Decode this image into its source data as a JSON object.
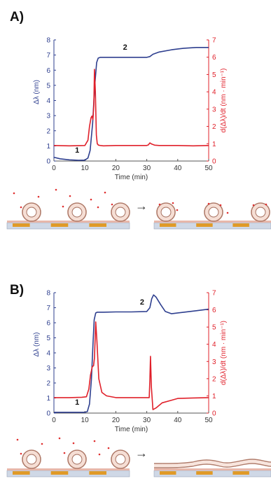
{
  "colors": {
    "left_axis": "#2e3f8f",
    "right_axis": "#e0202a",
    "axis_gray": "#555555",
    "ring_fill": "#f6ded4",
    "ring_stroke": "#b07a68",
    "dot": "#e03030",
    "substrate_gold": "#e09a28",
    "substrate_base": "#cfd8e6",
    "layer_pink": "#e7b7aa"
  },
  "arrow": {
    "a": "→",
    "b": "→"
  },
  "chart_data": [
    {
      "panel_label": "A)",
      "type": "line",
      "xlabel": "Time (min)",
      "ylabel_left": "Δλ (nm)",
      "ylabel_right": "d(Δλ)/dt (nm · min⁻¹)",
      "xlim": [
        0,
        50
      ],
      "ylim_left": [
        0,
        8
      ],
      "ylim_right": [
        0,
        7
      ],
      "x_ticks": [
        "0",
        "10",
        "20",
        "30",
        "40",
        "50"
      ],
      "y_ticks_left": [
        "0",
        "1",
        "2",
        "3",
        "4",
        "5",
        "6",
        "7",
        "8"
      ],
      "y_ticks_right": [
        "0",
        "1",
        "2",
        "3",
        "4",
        "5",
        "6",
        "7"
      ],
      "annotations": [
        {
          "text": "1",
          "x": 7.5,
          "y": 0.55
        },
        {
          "text": "2",
          "x": 23,
          "y": 7.35
        }
      ],
      "series": [
        {
          "axis": "left",
          "color": "#2e3f8f",
          "x": [
            0,
            2,
            5,
            8,
            10,
            11,
            11.7,
            12.5,
            13.2,
            13.8,
            14.3,
            15,
            18,
            22,
            26,
            29,
            30,
            31,
            32,
            34,
            38,
            42,
            46,
            50
          ],
          "y": [
            0.25,
            0.15,
            0.08,
            0.05,
            0.06,
            0.2,
            0.7,
            2.5,
            5.0,
            6.5,
            6.8,
            6.85,
            6.85,
            6.85,
            6.85,
            6.85,
            6.85,
            6.9,
            7.05,
            7.2,
            7.35,
            7.45,
            7.5,
            7.5
          ]
        },
        {
          "axis": "right",
          "color": "#e0202a",
          "x": [
            0,
            5,
            10,
            11,
            11.5,
            12,
            12.3,
            12.6,
            12.9,
            13.1,
            13.4,
            13.7,
            14,
            14.4,
            15,
            16,
            20,
            25,
            30,
            30.5,
            31,
            31.6,
            32.5,
            34,
            40,
            45,
            50
          ],
          "y": [
            0.9,
            0.88,
            0.9,
            1.2,
            2.0,
            2.5,
            2.6,
            2.4,
            3.2,
            5.3,
            4.0,
            1.5,
            1.0,
            0.92,
            0.9,
            0.88,
            0.9,
            0.9,
            0.9,
            0.93,
            1.05,
            0.98,
            0.92,
            0.9,
            0.9,
            0.88,
            0.9
          ]
        }
      ]
    },
    {
      "panel_label": "B)",
      "type": "line",
      "xlabel": "Time (min)",
      "ylabel_left": "Δλ (nm)",
      "ylabel_right": "d(Δλ)/dt (nm · min⁻¹)",
      "xlim": [
        0,
        50
      ],
      "ylim_left": [
        0,
        8
      ],
      "ylim_right": [
        0,
        7
      ],
      "x_ticks": [
        "0",
        "10",
        "20",
        "30",
        "40",
        "50"
      ],
      "y_ticks_left": [
        "0",
        "1",
        "2",
        "3",
        "4",
        "5",
        "6",
        "7",
        "8"
      ],
      "y_ticks_right": [
        "0",
        "1",
        "2",
        "3",
        "4",
        "5",
        "6",
        "7"
      ],
      "annotations": [
        {
          "text": "1",
          "x": 7.5,
          "y": 0.55
        },
        {
          "text": "2",
          "x": 28.5,
          "y": 7.2
        }
      ],
      "series": [
        {
          "axis": "left",
          "color": "#2e3f8f",
          "x": [
            0,
            5,
            10,
            10.8,
            11.5,
            12.1,
            12.6,
            13.0,
            13.5,
            14,
            16,
            20,
            25,
            30,
            31,
            31.6,
            32.2,
            33,
            34.5,
            36,
            38,
            42,
            46,
            50
          ],
          "y": [
            0.05,
            0.05,
            0.05,
            0.1,
            0.6,
            2.2,
            4.5,
            6.2,
            6.65,
            6.7,
            6.7,
            6.72,
            6.72,
            6.75,
            7.0,
            7.6,
            7.85,
            7.7,
            7.2,
            6.75,
            6.6,
            6.7,
            6.8,
            6.9
          ]
        },
        {
          "axis": "right",
          "color": "#e0202a",
          "x": [
            0,
            5,
            9,
            10.5,
            11.3,
            11.8,
            12.4,
            12.8,
            13.1,
            13.5,
            13.9,
            14.5,
            15.5,
            17,
            20,
            25,
            30,
            30.8,
            31.0,
            31.2,
            31.5,
            32,
            33,
            35,
            38,
            40,
            45,
            50
          ],
          "y": [
            0.9,
            0.9,
            0.92,
            0.95,
            1.4,
            2.2,
            2.7,
            2.75,
            3.2,
            5.3,
            4.2,
            2.0,
            1.2,
            1.0,
            0.9,
            0.9,
            0.9,
            0.9,
            1.9,
            3.3,
            1.5,
            0.2,
            0.3,
            0.6,
            0.75,
            0.85,
            0.88,
            0.9
          ]
        }
      ]
    }
  ]
}
